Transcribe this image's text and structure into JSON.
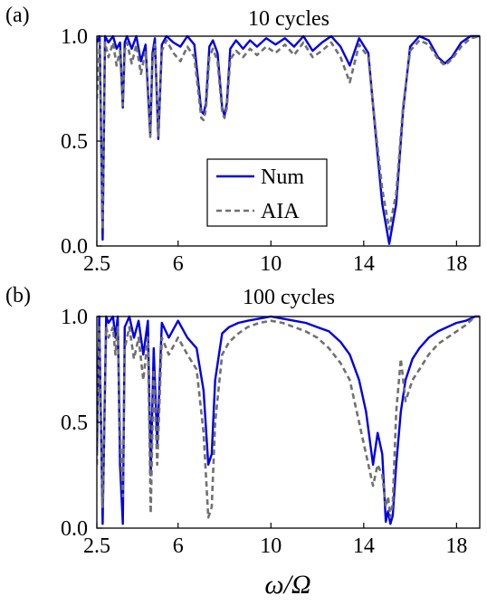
{
  "figure": {
    "xlabel": "ω/Ω",
    "series_legend": [
      {
        "name": "Num",
        "color": "#0000e6",
        "style": "solid"
      },
      {
        "name": "AIA",
        "color": "#707070",
        "style": "dashed"
      }
    ]
  },
  "chart_data": [
    {
      "type": "line",
      "panel_label": "(a)",
      "title": "10 cycles",
      "xlim": [
        2.5,
        19
      ],
      "ylim": [
        0,
        1
      ],
      "x_ticks": [
        "2.5",
        "6",
        "10",
        "14",
        "18"
      ],
      "y_ticks": [
        "0.0",
        "0.5",
        "1.0"
      ],
      "legend": "center",
      "series": [
        {
          "name": "Num",
          "x": [
            2.5,
            2.62,
            2.75,
            2.85,
            3.0,
            3.2,
            3.35,
            3.5,
            3.62,
            3.7,
            3.8,
            4.0,
            4.2,
            4.4,
            4.6,
            4.8,
            4.9,
            5.0,
            5.15,
            5.3,
            5.5,
            5.8,
            6.1,
            6.4,
            6.7,
            7.0,
            7.1,
            7.2,
            7.35,
            7.5,
            7.7,
            7.9,
            8.0,
            8.1,
            8.25,
            8.5,
            8.8,
            9.1,
            9.4,
            9.8,
            10.2,
            10.6,
            11.0,
            11.4,
            11.8,
            12.2,
            12.6,
            13.0,
            13.4,
            13.8,
            14.2,
            14.5,
            14.8,
            15.1,
            15.4,
            15.7,
            16.0,
            16.4,
            16.8,
            17.2,
            17.5,
            17.8,
            18.2,
            18.6,
            19.0
          ],
          "values": [
            0.97,
            1.0,
            0.03,
            1.0,
            0.97,
            1.0,
            0.94,
            0.97,
            0.66,
            0.97,
            1.0,
            0.94,
            1.0,
            0.88,
            0.96,
            0.53,
            0.92,
            0.99,
            0.51,
            0.96,
            1.0,
            0.97,
            0.95,
            1.0,
            0.96,
            0.64,
            0.63,
            0.68,
            0.95,
            0.98,
            0.92,
            0.66,
            0.62,
            0.68,
            0.94,
            0.98,
            0.94,
            0.98,
            0.95,
            0.99,
            0.96,
            0.99,
            0.95,
            1.0,
            0.93,
            0.97,
            1.0,
            0.95,
            0.86,
            0.99,
            0.92,
            0.55,
            0.2,
            0.01,
            0.2,
            0.65,
            0.95,
            1.0,
            0.98,
            0.9,
            0.87,
            0.9,
            0.97,
            1.0,
            1.0
          ]
        },
        {
          "name": "AIA",
          "x": [
            2.5,
            2.62,
            2.75,
            2.85,
            3.0,
            3.2,
            3.35,
            3.5,
            3.62,
            3.7,
            3.8,
            4.0,
            4.2,
            4.4,
            4.6,
            4.8,
            4.9,
            5.0,
            5.15,
            5.3,
            5.5,
            5.8,
            6.1,
            6.4,
            6.7,
            7.0,
            7.1,
            7.2,
            7.35,
            7.5,
            7.7,
            7.9,
            8.0,
            8.1,
            8.25,
            8.5,
            8.8,
            9.1,
            9.4,
            9.8,
            10.2,
            10.6,
            11.0,
            11.4,
            11.8,
            12.2,
            12.6,
            13.0,
            13.4,
            13.8,
            14.2,
            14.5,
            14.8,
            15.1,
            15.4,
            15.7,
            16.0,
            16.4,
            16.8,
            17.2,
            17.5,
            17.8,
            18.2,
            18.6,
            19.0
          ],
          "values": [
            0.7,
            0.97,
            0.08,
            0.97,
            0.9,
            0.97,
            0.86,
            0.93,
            0.67,
            0.93,
            0.97,
            0.87,
            0.96,
            0.82,
            0.93,
            0.52,
            0.88,
            0.96,
            0.52,
            0.93,
            0.98,
            0.92,
            0.88,
            0.95,
            0.9,
            0.61,
            0.6,
            0.65,
            0.9,
            0.94,
            0.88,
            0.64,
            0.61,
            0.66,
            0.89,
            0.93,
            0.9,
            0.94,
            0.91,
            0.95,
            0.92,
            0.96,
            0.91,
            0.97,
            0.9,
            0.93,
            0.97,
            0.9,
            0.78,
            0.96,
            0.9,
            0.57,
            0.27,
            0.08,
            0.25,
            0.67,
            0.93,
            0.98,
            0.96,
            0.89,
            0.86,
            0.89,
            0.95,
            0.99,
            1.0
          ]
        }
      ]
    },
    {
      "type": "line",
      "panel_label": "(b)",
      "title": "100 cycles",
      "xlim": [
        2.5,
        19
      ],
      "ylim": [
        0,
        1
      ],
      "x_ticks": [
        "2.5",
        "6",
        "10",
        "14",
        "18"
      ],
      "y_ticks": [
        "0.0",
        "0.5",
        "1.0"
      ],
      "series": [
        {
          "name": "Num",
          "x": [
            2.5,
            2.6,
            2.75,
            2.9,
            3.0,
            3.2,
            3.3,
            3.4,
            3.5,
            3.62,
            3.7,
            3.9,
            4.1,
            4.3,
            4.5,
            4.7,
            4.82,
            4.95,
            5.1,
            5.3,
            5.6,
            6.0,
            6.4,
            6.8,
            7.1,
            7.3,
            7.45,
            7.6,
            7.9,
            8.2,
            8.6,
            9.0,
            9.5,
            10.0,
            10.5,
            11.0,
            11.5,
            12.0,
            12.5,
            13.0,
            13.4,
            13.8,
            14.1,
            14.4,
            14.6,
            14.8,
            14.95,
            15.05,
            15.15,
            15.25,
            15.4,
            15.6,
            15.8,
            16.1,
            16.4,
            16.8,
            17.2,
            17.6,
            18.0,
            18.4,
            18.8,
            19.0
          ],
          "values": [
            0.35,
            1.0,
            0.02,
            1.0,
            0.97,
            1.0,
            0.9,
            1.0,
            0.3,
            0.02,
            0.95,
            1.0,
            0.9,
            0.98,
            0.82,
            0.98,
            0.25,
            0.85,
            0.4,
            0.97,
            0.9,
            0.98,
            0.9,
            0.85,
            0.65,
            0.3,
            0.35,
            0.7,
            0.92,
            0.95,
            0.97,
            0.98,
            0.99,
            1.0,
            0.99,
            0.98,
            0.97,
            0.95,
            0.93,
            0.88,
            0.82,
            0.7,
            0.55,
            0.3,
            0.45,
            0.35,
            0.03,
            0.08,
            0.02,
            0.06,
            0.3,
            0.55,
            0.7,
            0.8,
            0.85,
            0.9,
            0.93,
            0.95,
            0.97,
            0.98,
            1.0,
            1.0
          ]
        },
        {
          "name": "AIA",
          "x": [
            2.5,
            2.6,
            2.75,
            2.9,
            3.0,
            3.2,
            3.3,
            3.4,
            3.5,
            3.62,
            3.7,
            3.9,
            4.1,
            4.3,
            4.5,
            4.7,
            4.82,
            4.95,
            5.1,
            5.3,
            5.6,
            6.0,
            6.4,
            6.8,
            7.1,
            7.3,
            7.45,
            7.6,
            7.9,
            8.2,
            8.6,
            9.0,
            9.5,
            10.0,
            10.5,
            11.0,
            11.5,
            12.0,
            12.5,
            13.0,
            13.4,
            13.8,
            14.1,
            14.4,
            14.6,
            14.8,
            14.95,
            15.05,
            15.15,
            15.25,
            15.4,
            15.6,
            15.8,
            16.1,
            16.4,
            16.8,
            17.2,
            17.6,
            18.0,
            18.4,
            18.8,
            19.0
          ],
          "values": [
            0.3,
            0.95,
            0.1,
            0.95,
            0.9,
            0.95,
            0.82,
            0.95,
            0.45,
            0.15,
            0.85,
            0.95,
            0.8,
            0.9,
            0.7,
            0.9,
            0.07,
            0.75,
            0.3,
            0.9,
            0.82,
            0.9,
            0.82,
            0.75,
            0.45,
            0.05,
            0.1,
            0.5,
            0.82,
            0.88,
            0.92,
            0.95,
            0.97,
            0.98,
            0.97,
            0.95,
            0.93,
            0.9,
            0.85,
            0.78,
            0.7,
            0.5,
            0.35,
            0.2,
            0.3,
            0.25,
            0.1,
            0.15,
            0.05,
            0.12,
            0.55,
            0.8,
            0.6,
            0.7,
            0.75,
            0.82,
            0.87,
            0.9,
            0.93,
            0.96,
            1.0,
            1.0
          ]
        }
      ]
    }
  ]
}
